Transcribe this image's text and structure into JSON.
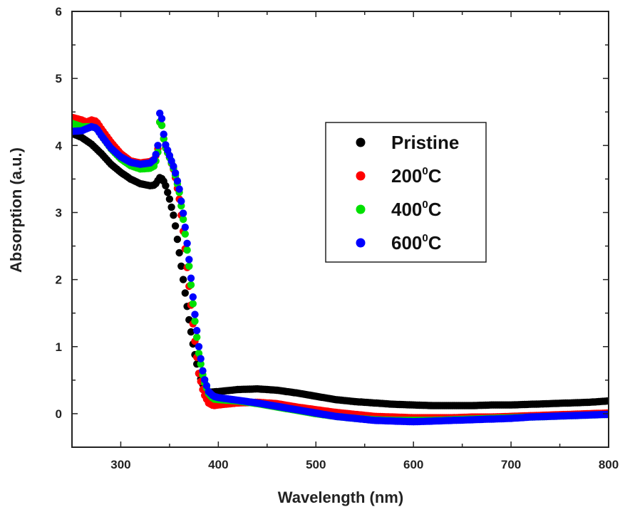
{
  "chart_data": {
    "type": "scatter",
    "xlabel": "Wavelength (nm)",
    "ylabel": "Absorption (a.u.)",
    "xlim": [
      250,
      800
    ],
    "ylim": [
      -0.5,
      6
    ],
    "xticks": [
      300,
      400,
      500,
      600,
      700,
      800
    ],
    "yticks": [
      0,
      1,
      2,
      3,
      4,
      5,
      6
    ],
    "grid": false,
    "legend_position": "upper-right",
    "series": [
      {
        "name": "Pristine",
        "label_main": "Pristine",
        "label_sup": "",
        "label_tail": "",
        "color": "#000000",
        "points": [
          [
            250,
            4.18
          ],
          [
            260,
            4.12
          ],
          [
            270,
            4.02
          ],
          [
            280,
            3.88
          ],
          [
            290,
            3.72
          ],
          [
            300,
            3.6
          ],
          [
            310,
            3.5
          ],
          [
            320,
            3.43
          ],
          [
            330,
            3.4
          ],
          [
            335,
            3.41
          ],
          [
            340,
            3.52
          ],
          [
            343,
            3.5
          ],
          [
            346,
            3.4
          ],
          [
            350,
            3.2
          ],
          [
            355,
            2.9
          ],
          [
            360,
            2.4
          ],
          [
            365,
            1.9
          ],
          [
            370,
            1.4
          ],
          [
            375,
            0.95
          ],
          [
            380,
            0.6
          ],
          [
            385,
            0.4
          ],
          [
            390,
            0.32
          ],
          [
            400,
            0.33
          ],
          [
            420,
            0.36
          ],
          [
            440,
            0.37
          ],
          [
            460,
            0.35
          ],
          [
            480,
            0.31
          ],
          [
            500,
            0.26
          ],
          [
            520,
            0.21
          ],
          [
            540,
            0.18
          ],
          [
            560,
            0.16
          ],
          [
            580,
            0.14
          ],
          [
            600,
            0.13
          ],
          [
            620,
            0.12
          ],
          [
            640,
            0.12
          ],
          [
            660,
            0.12
          ],
          [
            680,
            0.13
          ],
          [
            700,
            0.13
          ],
          [
            720,
            0.14
          ],
          [
            740,
            0.15
          ],
          [
            760,
            0.16
          ],
          [
            780,
            0.17
          ],
          [
            800,
            0.19
          ]
        ]
      },
      {
        "name": "200°C",
        "label_main": "200",
        "label_sup": "0",
        "label_tail": "C",
        "color": "#ff0000",
        "points": [
          [
            250,
            4.42
          ],
          [
            260,
            4.38
          ],
          [
            265,
            4.35
          ],
          [
            270,
            4.38
          ],
          [
            275,
            4.36
          ],
          [
            280,
            4.25
          ],
          [
            290,
            4.05
          ],
          [
            300,
            3.88
          ],
          [
            310,
            3.77
          ],
          [
            320,
            3.74
          ],
          [
            330,
            3.76
          ],
          [
            335,
            3.8
          ],
          [
            338,
            3.95
          ],
          [
            340,
            4.35
          ],
          [
            342,
            4.3
          ],
          [
            345,
            4.0
          ],
          [
            350,
            3.82
          ],
          [
            355,
            3.6
          ],
          [
            360,
            3.2
          ],
          [
            365,
            2.6
          ],
          [
            370,
            1.9
          ],
          [
            375,
            1.2
          ],
          [
            380,
            0.6
          ],
          [
            385,
            0.3
          ],
          [
            390,
            0.16
          ],
          [
            395,
            0.12
          ],
          [
            400,
            0.13
          ],
          [
            420,
            0.16
          ],
          [
            440,
            0.17
          ],
          [
            460,
            0.15
          ],
          [
            480,
            0.1
          ],
          [
            500,
            0.06
          ],
          [
            520,
            0.02
          ],
          [
            540,
            -0.01
          ],
          [
            560,
            -0.04
          ],
          [
            580,
            -0.05
          ],
          [
            600,
            -0.06
          ],
          [
            620,
            -0.06
          ],
          [
            640,
            -0.06
          ],
          [
            660,
            -0.05
          ],
          [
            680,
            -0.05
          ],
          [
            700,
            -0.04
          ],
          [
            720,
            -0.03
          ],
          [
            740,
            -0.02
          ],
          [
            760,
            -0.01
          ],
          [
            780,
            0.0
          ],
          [
            800,
            0.01
          ]
        ]
      },
      {
        "name": "400°C",
        "label_main": "400",
        "label_sup": "0",
        "label_tail": "C",
        "color": "#00e000",
        "points": [
          [
            250,
            4.33
          ],
          [
            260,
            4.28
          ],
          [
            270,
            4.28
          ],
          [
            275,
            4.26
          ],
          [
            280,
            4.15
          ],
          [
            290,
            3.95
          ],
          [
            300,
            3.8
          ],
          [
            310,
            3.7
          ],
          [
            320,
            3.65
          ],
          [
            330,
            3.66
          ],
          [
            335,
            3.7
          ],
          [
            338,
            3.9
          ],
          [
            340,
            4.35
          ],
          [
            342,
            4.3
          ],
          [
            345,
            4.0
          ],
          [
            350,
            3.82
          ],
          [
            355,
            3.62
          ],
          [
            360,
            3.3
          ],
          [
            365,
            2.8
          ],
          [
            370,
            2.2
          ],
          [
            375,
            1.5
          ],
          [
            380,
            0.9
          ],
          [
            385,
            0.5
          ],
          [
            390,
            0.3
          ],
          [
            395,
            0.22
          ],
          [
            400,
            0.21
          ],
          [
            420,
            0.19
          ],
          [
            440,
            0.15
          ],
          [
            460,
            0.1
          ],
          [
            480,
            0.05
          ],
          [
            500,
            0.0
          ],
          [
            520,
            -0.04
          ],
          [
            540,
            -0.07
          ],
          [
            560,
            -0.09
          ],
          [
            580,
            -0.1
          ],
          [
            600,
            -0.1
          ],
          [
            620,
            -0.1
          ],
          [
            640,
            -0.09
          ],
          [
            660,
            -0.08
          ],
          [
            680,
            -0.07
          ],
          [
            700,
            -0.06
          ],
          [
            720,
            -0.05
          ],
          [
            740,
            -0.04
          ],
          [
            760,
            -0.03
          ],
          [
            780,
            -0.02
          ],
          [
            800,
            -0.01
          ]
        ]
      },
      {
        "name": "600°C",
        "label_main": "600",
        "label_sup": "0",
        "label_tail": "C",
        "color": "#0000ff",
        "points": [
          [
            250,
            4.21
          ],
          [
            260,
            4.22
          ],
          [
            265,
            4.25
          ],
          [
            270,
            4.28
          ],
          [
            275,
            4.26
          ],
          [
            280,
            4.15
          ],
          [
            290,
            3.96
          ],
          [
            300,
            3.83
          ],
          [
            310,
            3.75
          ],
          [
            320,
            3.72
          ],
          [
            330,
            3.74
          ],
          [
            335,
            3.8
          ],
          [
            338,
            4.0
          ],
          [
            340,
            4.48
          ],
          [
            342,
            4.4
          ],
          [
            345,
            4.05
          ],
          [
            350,
            3.85
          ],
          [
            355,
            3.65
          ],
          [
            360,
            3.35
          ],
          [
            365,
            2.9
          ],
          [
            370,
            2.3
          ],
          [
            375,
            1.6
          ],
          [
            380,
            1.0
          ],
          [
            385,
            0.55
          ],
          [
            390,
            0.33
          ],
          [
            395,
            0.26
          ],
          [
            400,
            0.24
          ],
          [
            420,
            0.2
          ],
          [
            440,
            0.16
          ],
          [
            460,
            0.11
          ],
          [
            480,
            0.06
          ],
          [
            500,
            0.01
          ],
          [
            520,
            -0.04
          ],
          [
            540,
            -0.07
          ],
          [
            560,
            -0.1
          ],
          [
            580,
            -0.11
          ],
          [
            600,
            -0.12
          ],
          [
            620,
            -0.11
          ],
          [
            640,
            -0.1
          ],
          [
            660,
            -0.09
          ],
          [
            680,
            -0.08
          ],
          [
            700,
            -0.07
          ],
          [
            720,
            -0.05
          ],
          [
            740,
            -0.04
          ],
          [
            760,
            -0.03
          ],
          [
            780,
            -0.02
          ],
          [
            800,
            -0.01
          ]
        ]
      }
    ]
  }
}
